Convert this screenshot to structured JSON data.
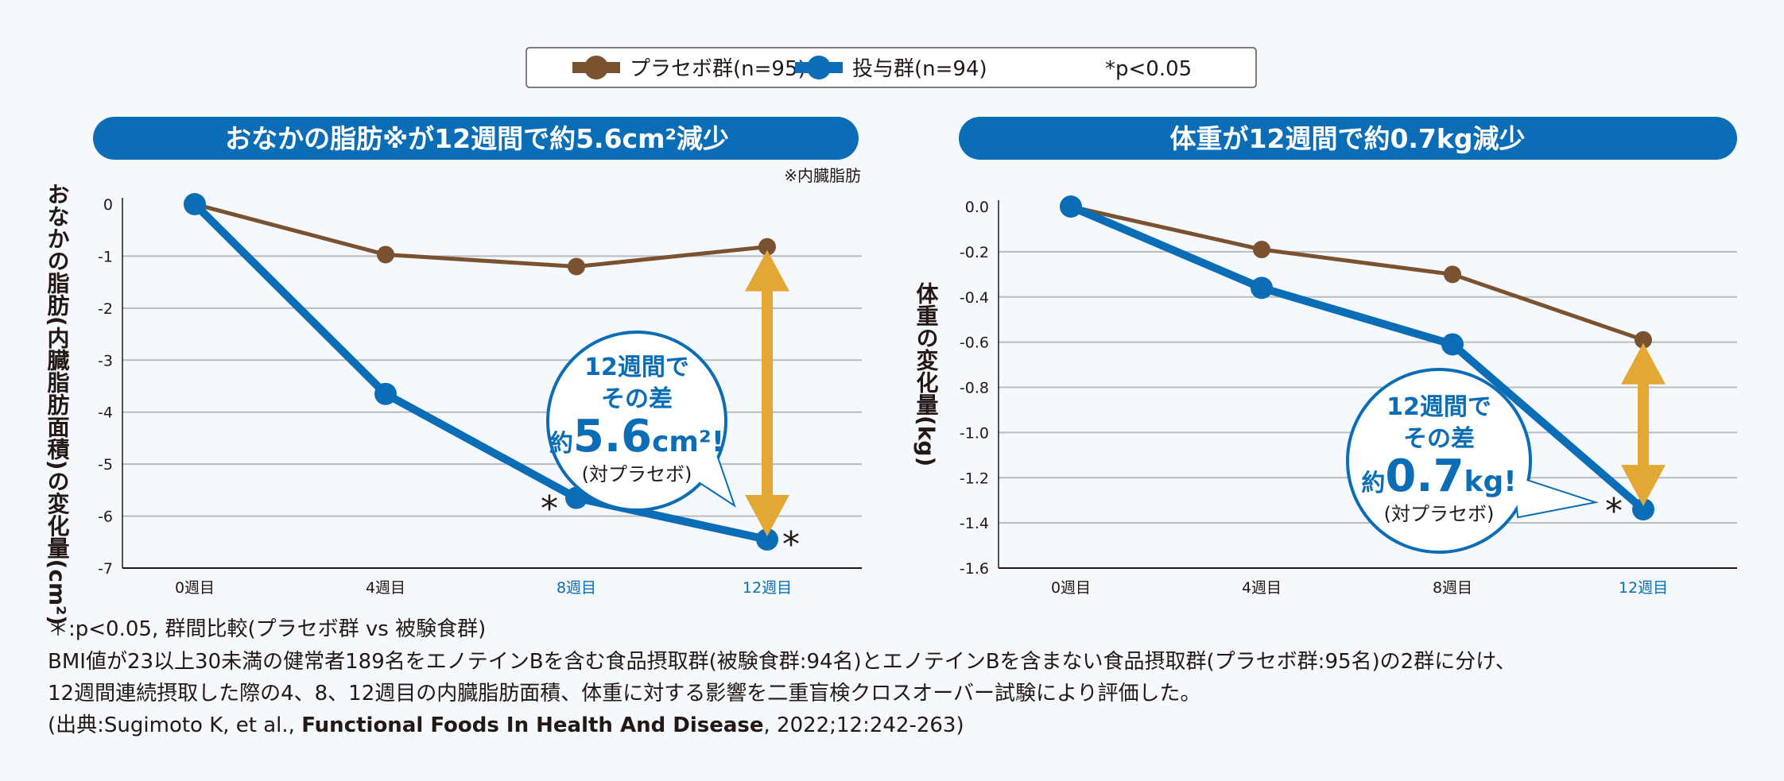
{
  "colors": {
    "placebo": "#7a5230",
    "treated": "#0a6db5",
    "arrow": "#e3a834",
    "pill": "#0a6db5",
    "grid": "#b9bcc2",
    "highlight_tick": "#0a6db5"
  },
  "legend": {
    "placebo_label": "プラセボ群(n=95)",
    "treated_label": "投与群(n=94)",
    "significance": "*p<0.05"
  },
  "chart_data": [
    {
      "type": "line",
      "title": "おなかの脂肪※が12週間で約5.6cm²減少",
      "title_note": "※内臓脂肪",
      "ylabel": "おなかの脂肪(内臓脂肪面積)の変化量(cm²)",
      "xlabel": "",
      "categories": [
        "0週目",
        "4週目",
        "8週目",
        "12週目"
      ],
      "highlighted_categories": [
        "8週目",
        "12週目"
      ],
      "ylim": [
        -7,
        0
      ],
      "yticks": [
        "0",
        "-1",
        "-2",
        "-3",
        "-4",
        "-5",
        "-6",
        "-7"
      ],
      "ytick_values": [
        0,
        -1,
        -2,
        -3,
        -4,
        -5,
        -6,
        -7
      ],
      "grid": true,
      "series": [
        {
          "name": "プラセボ群(n=95)",
          "key": "placebo",
          "values": [
            0,
            -0.97,
            -1.2,
            -0.82
          ]
        },
        {
          "name": "投与群(n=94)",
          "key": "treated",
          "values": [
            0,
            -3.65,
            -5.65,
            -6.45
          ]
        }
      ],
      "significant_markers": [
        "8週目",
        "12週目"
      ],
      "asterisk": "*",
      "callout": {
        "line1": "12週間で",
        "line2": "その差",
        "prefix": "約",
        "value": "5.6",
        "unit": "cm²!",
        "suffix": "(対プラセボ)"
      }
    },
    {
      "type": "line",
      "title": "体重が12週間で約0.7kg減少",
      "ylabel": "体重の変化量(kg)",
      "xlabel": "",
      "categories": [
        "0週目",
        "4週目",
        "8週目",
        "12週目"
      ],
      "highlighted_categories": [
        "12週目"
      ],
      "ylim": [
        -1.6,
        0
      ],
      "yticks": [
        "0.0",
        "-0.2",
        "-0.4",
        "-0.6",
        "-0.8",
        "-1.0",
        "-1.2",
        "-1.4",
        "-1.6"
      ],
      "ytick_values": [
        0,
        -0.2,
        -0.4,
        -0.6,
        -0.8,
        -1.0,
        -1.2,
        -1.4,
        -1.6
      ],
      "grid": true,
      "series": [
        {
          "name": "プラセボ群(n=95)",
          "key": "placebo",
          "values": [
            0,
            -0.19,
            -0.3,
            -0.59
          ]
        },
        {
          "name": "投与群(n=94)",
          "key": "treated",
          "values": [
            0,
            -0.36,
            -0.61,
            -1.34
          ]
        }
      ],
      "significant_markers": [
        "12週目"
      ],
      "asterisk": "*",
      "callout": {
        "line1": "12週間で",
        "line2": "その差",
        "prefix": "約",
        "value": "0.7",
        "unit": "kg!",
        "suffix": "(対プラセボ)"
      }
    }
  ],
  "footnotes": {
    "line1": "＊:p<0.05, 群間比較(プラセボ群 vs 被験食群)",
    "line2": "BMI値が23以上30未満の健常者189名をエノテインBを含む食品摂取群(被験食群:94名)とエノテインBを含まない食品摂取群(プラセボ群:95名)の2群に分け、",
    "line3": "12週間連続摂取した際の4、8、12週目の内臓脂肪面積、体重に対する影響を二重盲検クロスオーバー試験により評価した。",
    "citation_prefix": "(出典:Sugimoto K, et al., ",
    "citation_journal": "Functional Foods In Health And Disease",
    "citation_suffix": ", 2022;12:242-263)"
  }
}
